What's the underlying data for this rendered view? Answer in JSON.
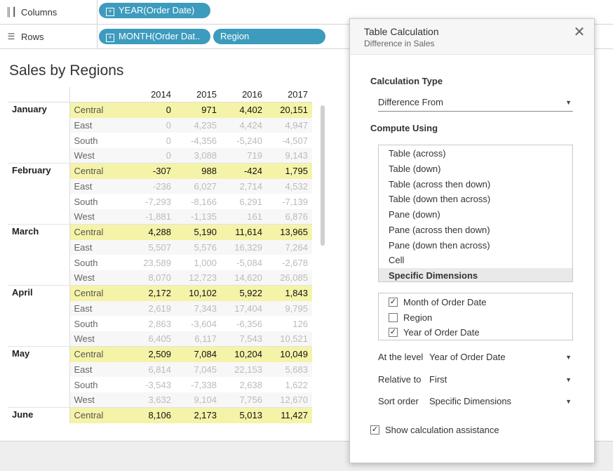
{
  "shelves": {
    "columns": {
      "label": "Columns",
      "icon": "columns-icon",
      "pills": [
        "YEAR(Order Date)"
      ]
    },
    "rows": {
      "label": "Rows",
      "icon": "rows-icon",
      "pills": [
        "MONTH(Order Dat..",
        "Region"
      ]
    }
  },
  "sheet": {
    "title": "Sales by Regions",
    "years": [
      "2014",
      "2015",
      "2016",
      "2017"
    ],
    "months": [
      {
        "name": "January",
        "rows": [
          {
            "region": "Central",
            "values": [
              "0",
              "971",
              "4,402",
              "20,151"
            ]
          },
          {
            "region": "East",
            "values": [
              "0",
              "4,235",
              "4,424",
              "4,947"
            ]
          },
          {
            "region": "South",
            "values": [
              "0",
              "-4,356",
              "-5,240",
              "-4,507"
            ]
          },
          {
            "region": "West",
            "values": [
              "0",
              "3,088",
              "719",
              "9,143"
            ]
          }
        ]
      },
      {
        "name": "February",
        "rows": [
          {
            "region": "Central",
            "values": [
              "-307",
              "988",
              "-424",
              "1,795"
            ]
          },
          {
            "region": "East",
            "values": [
              "-236",
              "6,027",
              "2,714",
              "4,532"
            ]
          },
          {
            "region": "South",
            "values": [
              "-7,293",
              "-8,166",
              "6,291",
              "-7,139"
            ]
          },
          {
            "region": "West",
            "values": [
              "-1,881",
              "-1,135",
              "161",
              "6,876"
            ]
          }
        ]
      },
      {
        "name": "March",
        "rows": [
          {
            "region": "Central",
            "values": [
              "4,288",
              "5,190",
              "11,614",
              "13,965"
            ]
          },
          {
            "region": "East",
            "values": [
              "5,507",
              "5,576",
              "16,329",
              "7,264"
            ]
          },
          {
            "region": "South",
            "values": [
              "23,589",
              "1,000",
              "-5,084",
              "-2,678"
            ]
          },
          {
            "region": "West",
            "values": [
              "8,070",
              "12,723",
              "14,620",
              "26,085"
            ]
          }
        ]
      },
      {
        "name": "April",
        "rows": [
          {
            "region": "Central",
            "values": [
              "2,172",
              "10,102",
              "5,922",
              "1,843"
            ]
          },
          {
            "region": "East",
            "values": [
              "2,619",
              "7,343",
              "17,404",
              "9,795"
            ]
          },
          {
            "region": "South",
            "values": [
              "2,863",
              "-3,604",
              "-6,356",
              "126"
            ]
          },
          {
            "region": "West",
            "values": [
              "6,405",
              "6,117",
              "7,543",
              "10,521"
            ]
          }
        ]
      },
      {
        "name": "May",
        "rows": [
          {
            "region": "Central",
            "values": [
              "2,509",
              "7,084",
              "10,204",
              "10,049"
            ]
          },
          {
            "region": "East",
            "values": [
              "6,814",
              "7,045",
              "22,153",
              "5,683"
            ]
          },
          {
            "region": "South",
            "values": [
              "-3,543",
              "-7,338",
              "2,638",
              "1,622"
            ]
          },
          {
            "region": "West",
            "values": [
              "3,632",
              "9,104",
              "7,756",
              "12,670"
            ]
          }
        ]
      },
      {
        "name": "June",
        "rows": [
          {
            "region": "Central",
            "values": [
              "8,106",
              "2,173",
              "5,013",
              "11,427"
            ]
          }
        ]
      }
    ]
  },
  "dialog": {
    "title": "Table Calculation",
    "subtitle": "Difference in Sales",
    "calc_type_label": "Calculation Type",
    "calc_type_value": "Difference From",
    "compute_using_label": "Compute Using",
    "compute_options": [
      "Table (across)",
      "Table (down)",
      "Table (across then down)",
      "Table (down then across)",
      "Pane (down)",
      "Pane (across then down)",
      "Pane (down then across)",
      "Cell",
      "Specific Dimensions"
    ],
    "compute_selected": "Specific Dimensions",
    "dimensions": [
      {
        "label": "Month of Order Date",
        "checked": true
      },
      {
        "label": "Region",
        "checked": false
      },
      {
        "label": "Year of Order Date",
        "checked": true
      }
    ],
    "at_level_label": "At the level",
    "at_level_value": "Year of Order Date",
    "relative_to_label": "Relative to",
    "relative_to_value": "First",
    "sort_order_label": "Sort order",
    "sort_order_value": "Specific Dimensions",
    "show_assist_label": "Show calculation assistance",
    "show_assist_checked": true
  },
  "colors": {
    "pill": "#3d9bbd",
    "highlight": "#f5f3a8"
  }
}
